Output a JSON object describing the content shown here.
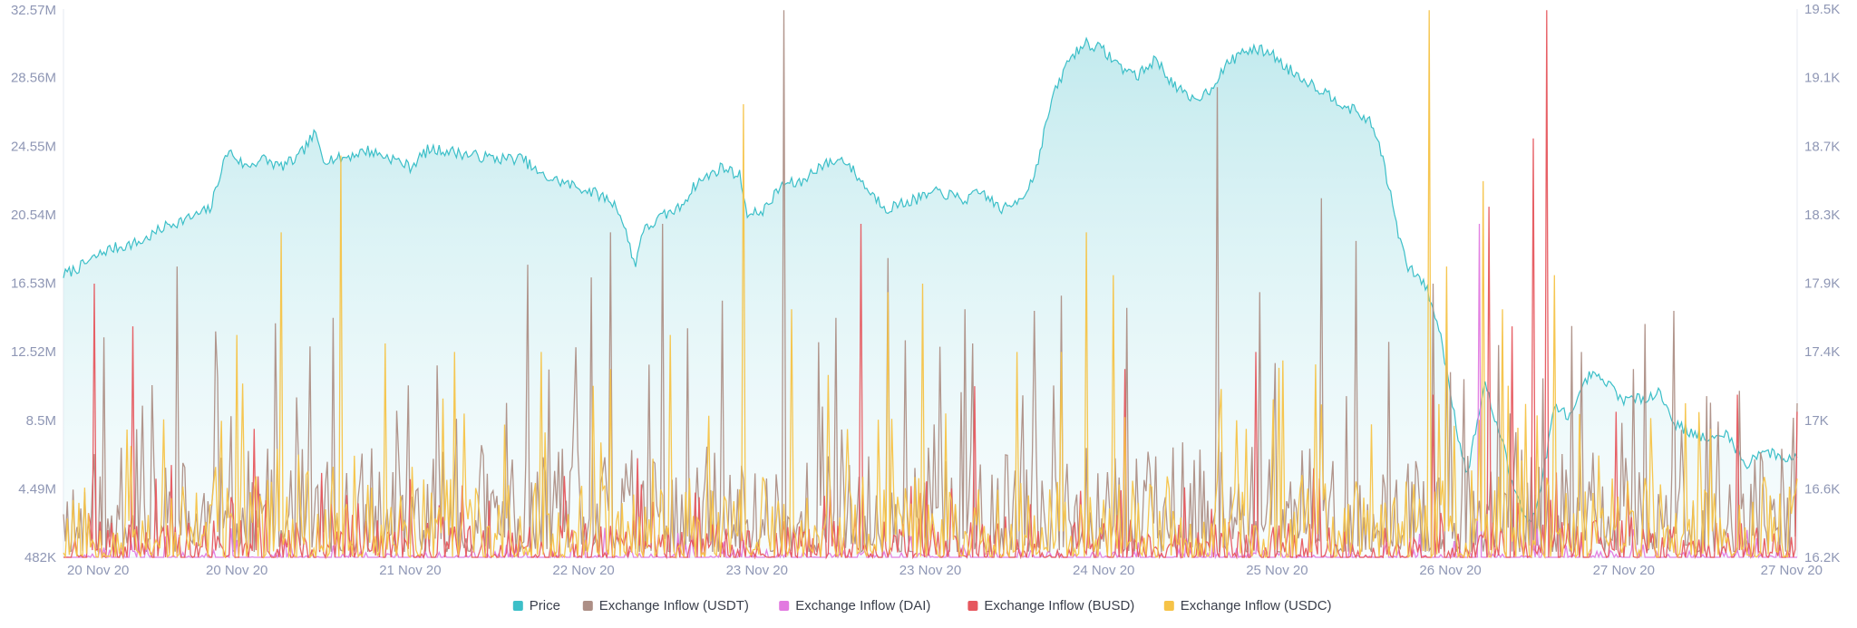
{
  "chart_data": {
    "type": "line",
    "title": "",
    "xlabel": "",
    "ylabel": "",
    "x_tick_labels": [
      "20 Nov 20",
      "20 Nov 20",
      "21 Nov 20",
      "22 Nov 20",
      "23 Nov 20",
      "23 Nov 20",
      "24 Nov 20",
      "25 Nov 20",
      "26 Nov 20",
      "27 Nov 20",
      "27 Nov 20"
    ],
    "y_left": {
      "ticks": [
        "482K",
        "4.49M",
        "8.5M",
        "12.52M",
        "16.53M",
        "20.54M",
        "24.55M",
        "28.56M",
        "32.57M"
      ],
      "range": [
        482000,
        32570000
      ]
    },
    "y_right": {
      "ticks": [
        "16.2K",
        "16.6K",
        "17K",
        "17.4K",
        "17.9K",
        "18.3K",
        "18.7K",
        "19.1K",
        "19.5K"
      ],
      "range": [
        16200,
        19500
      ]
    },
    "price": {
      "name": "Price",
      "color": "#3cbfc8",
      "axis": "right",
      "anchors": [
        [
          0.0,
          17900
        ],
        [
          0.01,
          17950
        ],
        [
          0.025,
          18050
        ],
        [
          0.045,
          18100
        ],
        [
          0.06,
          18200
        ],
        [
          0.075,
          18250
        ],
        [
          0.085,
          18300
        ],
        [
          0.09,
          18500
        ],
        [
          0.095,
          18650
        ],
        [
          0.105,
          18550
        ],
        [
          0.115,
          18600
        ],
        [
          0.125,
          18550
        ],
        [
          0.135,
          18600
        ],
        [
          0.145,
          18750
        ],
        [
          0.15,
          18600
        ],
        [
          0.16,
          18600
        ],
        [
          0.175,
          18650
        ],
        [
          0.19,
          18600
        ],
        [
          0.2,
          18550
        ],
        [
          0.21,
          18650
        ],
        [
          0.22,
          18650
        ],
        [
          0.235,
          18620
        ],
        [
          0.25,
          18600
        ],
        [
          0.265,
          18600
        ],
        [
          0.275,
          18500
        ],
        [
          0.29,
          18450
        ],
        [
          0.305,
          18400
        ],
        [
          0.315,
          18350
        ],
        [
          0.32,
          18300
        ],
        [
          0.326,
          18100
        ],
        [
          0.33,
          17950
        ],
        [
          0.333,
          18150
        ],
        [
          0.345,
          18250
        ],
        [
          0.355,
          18300
        ],
        [
          0.365,
          18450
        ],
        [
          0.38,
          18550
        ],
        [
          0.39,
          18500
        ],
        [
          0.395,
          18250
        ],
        [
          0.405,
          18300
        ],
        [
          0.415,
          18450
        ],
        [
          0.425,
          18450
        ],
        [
          0.435,
          18550
        ],
        [
          0.45,
          18600
        ],
        [
          0.465,
          18400
        ],
        [
          0.475,
          18300
        ],
        [
          0.49,
          18350
        ],
        [
          0.505,
          18400
        ],
        [
          0.52,
          18350
        ],
        [
          0.53,
          18400
        ],
        [
          0.54,
          18300
        ],
        [
          0.545,
          18300
        ],
        [
          0.555,
          18400
        ],
        [
          0.56,
          18500
        ],
        [
          0.57,
          18950
        ],
        [
          0.58,
          19200
        ],
        [
          0.59,
          19300
        ],
        [
          0.6,
          19250
        ],
        [
          0.61,
          19150
        ],
        [
          0.62,
          19100
        ],
        [
          0.63,
          19200
        ],
        [
          0.64,
          19050
        ],
        [
          0.65,
          18950
        ],
        [
          0.66,
          19000
        ],
        [
          0.67,
          19150
        ],
        [
          0.68,
          19250
        ],
        [
          0.695,
          19250
        ],
        [
          0.705,
          19150
        ],
        [
          0.72,
          19050
        ],
        [
          0.735,
          18950
        ],
        [
          0.75,
          18850
        ],
        [
          0.755,
          18800
        ],
        [
          0.76,
          18650
        ],
        [
          0.765,
          18400
        ],
        [
          0.77,
          18150
        ],
        [
          0.775,
          17950
        ],
        [
          0.78,
          17900
        ],
        [
          0.785,
          17850
        ],
        [
          0.79,
          17700
        ],
        [
          0.795,
          17500
        ],
        [
          0.8,
          17200
        ],
        [
          0.805,
          16900
        ],
        [
          0.81,
          16700
        ],
        [
          0.815,
          17000
        ],
        [
          0.82,
          17250
        ],
        [
          0.825,
          17050
        ],
        [
          0.83,
          16900
        ],
        [
          0.835,
          16650
        ],
        [
          0.84,
          16550
        ],
        [
          0.845,
          16400
        ],
        [
          0.85,
          16500
        ],
        [
          0.855,
          16800
        ],
        [
          0.86,
          17100
        ],
        [
          0.87,
          17050
        ],
        [
          0.88,
          17300
        ],
        [
          0.89,
          17250
        ],
        [
          0.9,
          17150
        ],
        [
          0.91,
          17150
        ],
        [
          0.92,
          17200
        ],
        [
          0.93,
          17000
        ],
        [
          0.94,
          16950
        ],
        [
          0.95,
          16900
        ],
        [
          0.96,
          16950
        ],
        [
          0.97,
          16750
        ],
        [
          0.98,
          16850
        ],
        [
          0.99,
          16800
        ],
        [
          1.0,
          16800
        ]
      ]
    },
    "series": [
      {
        "name": "Exchange Inflow (USDT)",
        "color": "#ad8f86",
        "axis": "left",
        "base": 3200000,
        "spread": 2800000,
        "spikes": [
          [
            0.065,
            17500000
          ],
          [
            0.155,
            14500000
          ],
          [
            0.315,
            19500000
          ],
          [
            0.345,
            20000000
          ],
          [
            0.38,
            15500000
          ],
          [
            0.416,
            32500000
          ],
          [
            0.445,
            14500000
          ],
          [
            0.475,
            18000000
          ],
          [
            0.52,
            15000000
          ],
          [
            0.575,
            15800000
          ],
          [
            0.665,
            28000000
          ],
          [
            0.69,
            16000000
          ],
          [
            0.725,
            21500000
          ],
          [
            0.745,
            19000000
          ],
          [
            0.79,
            16500000
          ],
          [
            0.875,
            12500000
          ],
          [
            0.905,
            11500000
          ]
        ],
        "pinned": [
          [
            0.0,
            3000000
          ],
          [
            1.0,
            9500000
          ]
        ],
        "seed": 11
      },
      {
        "name": "Exchange Inflow (DAI)",
        "color": "#e27ae0",
        "axis": "left",
        "base": 500000,
        "spread": 350000,
        "spikes": [
          [
            0.815,
            32500000
          ],
          [
            0.817,
            20000000
          ],
          [
            0.312,
            2200000
          ],
          [
            0.648,
            1600000
          ],
          [
            0.1,
            1500000
          ]
        ],
        "pinned": [],
        "seed": 23
      },
      {
        "name": "Exchange Inflow (BUSD)",
        "color": "#e6575e",
        "axis": "left",
        "base": 900000,
        "spread": 1100000,
        "spikes": [
          [
            0.018,
            16500000
          ],
          [
            0.04,
            14000000
          ],
          [
            0.11,
            8000000
          ],
          [
            0.46,
            20000000
          ],
          [
            0.525,
            10500000
          ],
          [
            0.612,
            11500000
          ],
          [
            0.688,
            12500000
          ],
          [
            0.79,
            10000000
          ],
          [
            0.822,
            21000000
          ],
          [
            0.835,
            14000000
          ],
          [
            0.856,
            32500000
          ],
          [
            0.848,
            25000000
          ],
          [
            0.895,
            9000000
          ],
          [
            0.965,
            10000000
          ]
        ],
        "pinned": [
          [
            1.0,
            9000000
          ]
        ],
        "seed": 37
      },
      {
        "name": "Exchange Inflow (USDC)",
        "color": "#f6c347",
        "axis": "left",
        "base": 2000000,
        "spread": 2200000,
        "spikes": [
          [
            0.1,
            13500000
          ],
          [
            0.125,
            19500000
          ],
          [
            0.16,
            24000000
          ],
          [
            0.185,
            13000000
          ],
          [
            0.225,
            12500000
          ],
          [
            0.275,
            12500000
          ],
          [
            0.315,
            11500000
          ],
          [
            0.35,
            13500000
          ],
          [
            0.392,
            27000000
          ],
          [
            0.42,
            15000000
          ],
          [
            0.475,
            16000000
          ],
          [
            0.495,
            16500000
          ],
          [
            0.55,
            12500000
          ],
          [
            0.575,
            12500000
          ],
          [
            0.59,
            19500000
          ],
          [
            0.605,
            17000000
          ],
          [
            0.703,
            12000000
          ],
          [
            0.788,
            32500000
          ],
          [
            0.798,
            17500000
          ],
          [
            0.819,
            22500000
          ],
          [
            0.83,
            15000000
          ],
          [
            0.86,
            17000000
          ],
          [
            0.935,
            9500000
          ],
          [
            0.95,
            8000000
          ]
        ],
        "pinned": [],
        "seed": 53
      }
    ],
    "legend": {
      "placement": "bottom-center",
      "items": [
        {
          "label": "Price",
          "color": "#3cbfc8"
        },
        {
          "label": "Exchange Inflow (USDT)",
          "color": "#ad8f86"
        },
        {
          "label": "Exchange Inflow (DAI)",
          "color": "#e27ae0"
        },
        {
          "label": "Exchange Inflow (BUSD)",
          "color": "#e6575e"
        },
        {
          "label": "Exchange Inflow (USDC)",
          "color": "#f6c347"
        }
      ]
    },
    "grid": false,
    "samples": 900
  }
}
